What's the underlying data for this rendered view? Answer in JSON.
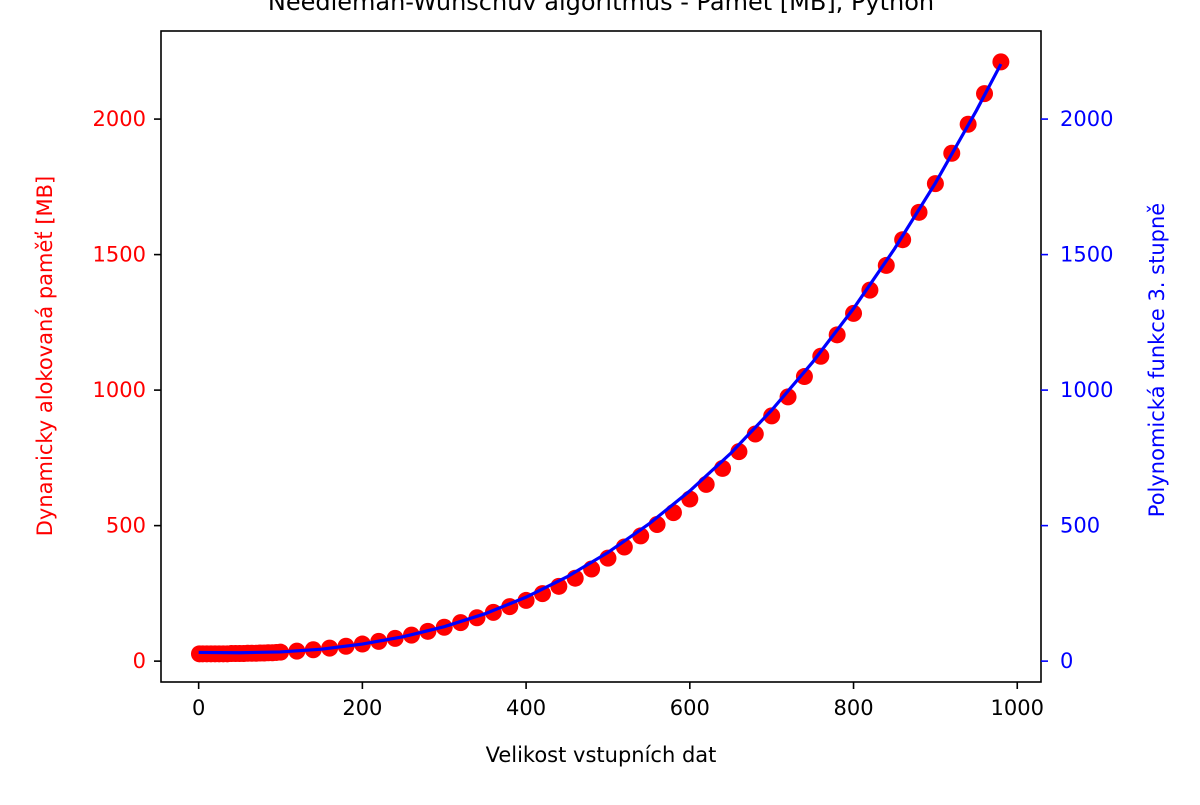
{
  "chart_data": {
    "type": "scatter",
    "title": "Needleman-Wunschův algoritmus - Paměť [MB], Python",
    "xlabel": "Velikost vstupních dat",
    "ylabel_left": "Dynamicky alokovaná paměť [MB]",
    "ylabel_right": "Polynomická funkce 3. stupně",
    "xlim": [
      -46,
      1029
    ],
    "ylim": [
      -77,
      2325
    ],
    "x_ticks": [
      0,
      200,
      400,
      600,
      800,
      1000
    ],
    "y_ticks": [
      0,
      500,
      1000,
      1500,
      2000
    ],
    "grid": false,
    "legend": "none",
    "colors": {
      "left_axis": "#ff0000",
      "right_axis": "#0000ff",
      "points": "#ff0000",
      "fit_line": "#0000ff"
    },
    "series": [
      {
        "kind": "scatter",
        "x": [
          1,
          5,
          10,
          15,
          20,
          25,
          30,
          35,
          40,
          45,
          50,
          55,
          60,
          65,
          70,
          75,
          80,
          85,
          90,
          95,
          100,
          120,
          140,
          160,
          180,
          200,
          220,
          240,
          260,
          280,
          300,
          320,
          340,
          360,
          380,
          400,
          420,
          440,
          460,
          480,
          500,
          520,
          540,
          560,
          580,
          600,
          620,
          640,
          660,
          680,
          700,
          720,
          740,
          760,
          780,
          800,
          820,
          840,
          860,
          880,
          900,
          920,
          940,
          960,
          980
        ],
        "values": [
          27,
          27,
          27,
          27,
          27,
          27,
          27,
          27,
          28,
          28,
          28,
          28,
          29,
          29,
          29,
          30,
          30,
          31,
          31,
          32,
          33,
          37,
          42,
          48,
          55,
          63,
          73,
          84,
          96,
          110,
          125,
          142,
          160,
          180,
          201,
          224,
          249,
          276,
          306,
          340,
          380,
          421,
          462,
          504,
          548,
          598,
          652,
          711,
          773,
          838,
          905,
          975,
          1050,
          1125,
          1204,
          1283,
          1369,
          1460,
          1555,
          1656,
          1762,
          1874,
          1981,
          2094,
          2211
        ]
      },
      {
        "kind": "line",
        "x": [
          0,
          50,
          100,
          150,
          200,
          250,
          300,
          350,
          400,
          450,
          500,
          550,
          600,
          650,
          700,
          750,
          800,
          850,
          900,
          950,
          980
        ],
        "values": [
          32,
          31,
          34,
          44,
          63,
          90,
          127,
          175,
          236,
          311,
          401,
          506,
          628,
          767,
          926,
          1103,
          1301,
          1521,
          1764,
          2031,
          2203
        ]
      }
    ]
  }
}
